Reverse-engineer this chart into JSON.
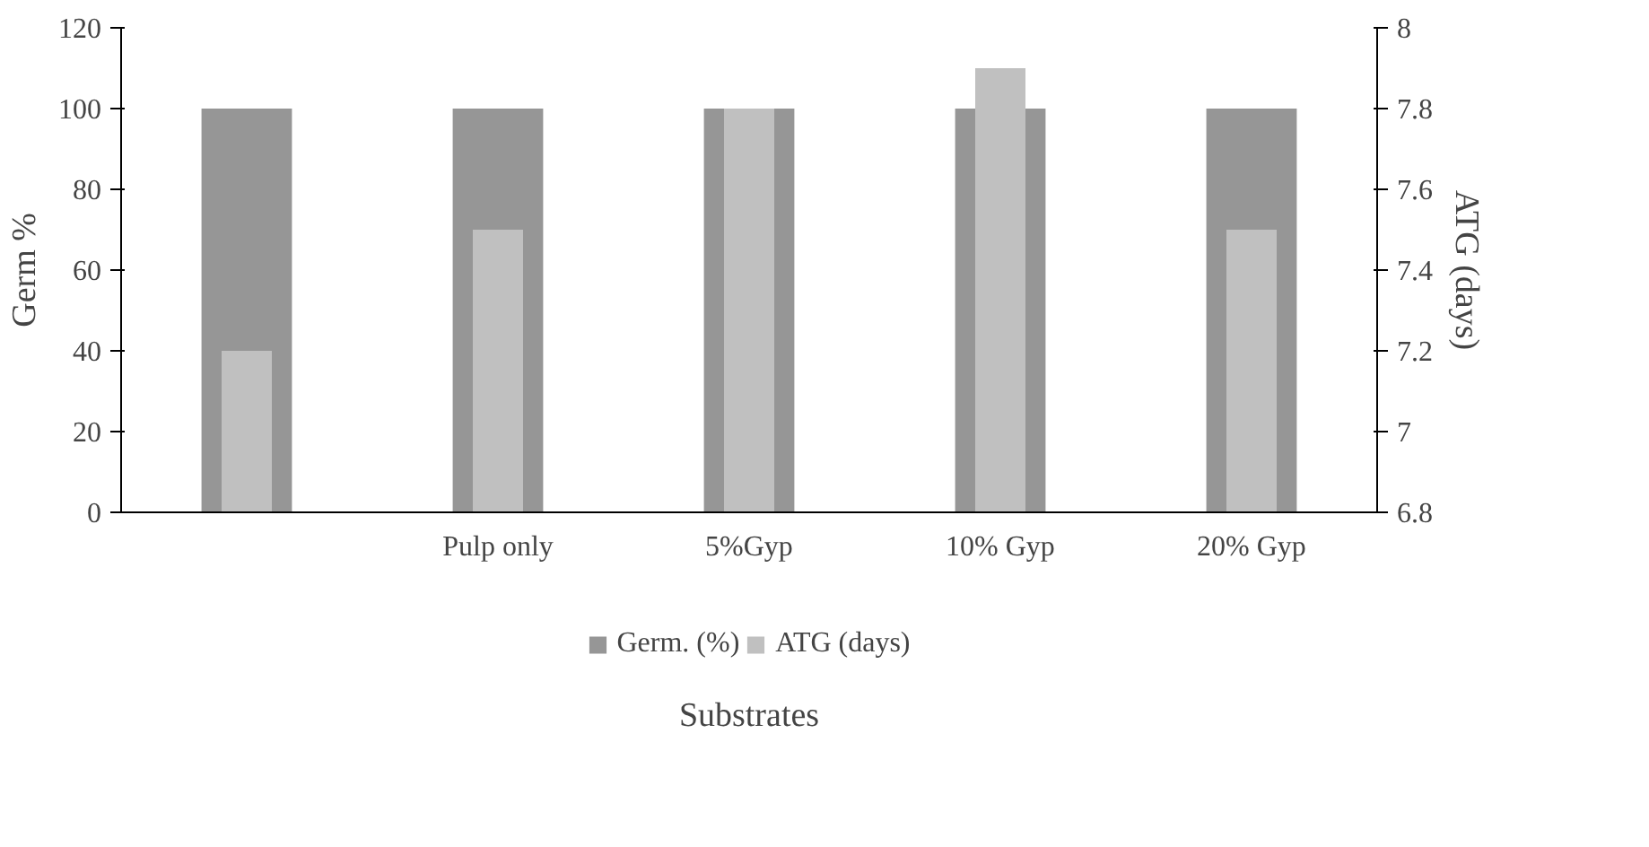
{
  "chart_data": {
    "type": "bar",
    "categories": [
      null,
      "Pulp only",
      "5%Gyp",
      "10% Gyp",
      "20% Gyp"
    ],
    "series": [
      {
        "name": "Germ. (%)",
        "color": "#969696",
        "values": [
          100,
          100,
          100,
          100,
          100
        ]
      },
      {
        "name": "ATG (days)",
        "color": "#c0c0c0",
        "values": [
          7.2,
          7.5,
          7.8,
          7.9,
          7.5
        ],
        "axis": "y2"
      }
    ],
    "xlabel": "Substrates",
    "ylabel": "Germ %",
    "y2label": "ATG (days)",
    "ylim": [
      0,
      120
    ],
    "yticks": [
      0,
      20,
      40,
      60,
      80,
      100,
      120
    ],
    "y2lim": [
      6.8,
      8
    ],
    "y2ticks": [
      6.8,
      7,
      7.2,
      7.4,
      7.6,
      7.8,
      8
    ],
    "grid": false,
    "legend": "bottom"
  }
}
